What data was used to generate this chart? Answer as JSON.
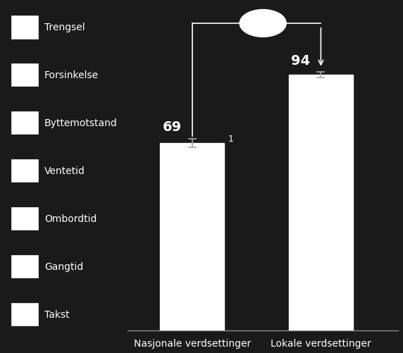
{
  "categories": [
    "Nasjonale verdsettinger",
    "Lokale verdsettinger"
  ],
  "values": [
    69,
    94
  ],
  "bar_colors": [
    "#ffffff",
    "#ffffff"
  ],
  "bar_edge_colors": [
    "#ffffff",
    "#ffffff"
  ],
  "error_bars": [
    1.5,
    1.0
  ],
  "bar_labels": [
    "69",
    "94"
  ],
  "legend_items": [
    "Trengsel",
    "Forsinkelse",
    "Byttemotstand",
    "Ventetid",
    "Ombordtid",
    "Gangtid",
    "Takst"
  ],
  "legend_box_color": "#ffffff",
  "legend_box_edge": "#ffffff",
  "background_color": "#1a1a1a",
  "text_color": "#ffffff",
  "bar_label_fontsize": 14,
  "annotation_text": "1",
  "ylim": [
    0,
    120
  ],
  "figsize": [
    5.72,
    5.02
  ],
  "dpi": 100,
  "legend_fontsize": 10,
  "xlabel_fontsize": 10
}
